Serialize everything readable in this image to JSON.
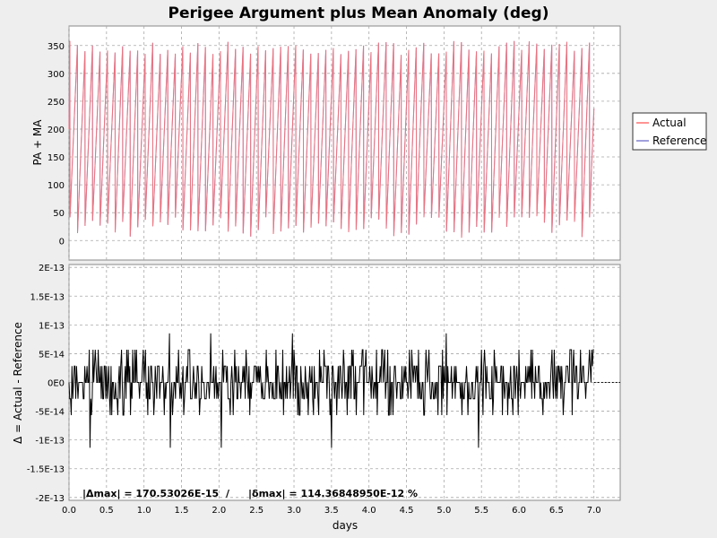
{
  "chart_data": [
    {
      "type": "line",
      "title": "Perigee Argument plus Mean Anomaly (deg)",
      "ylabel": "PA + MA",
      "xlim": [
        0,
        7.35
      ],
      "ylim": [
        -35,
        385
      ],
      "yticks": [
        0,
        50,
        100,
        150,
        200,
        250,
        300,
        350
      ],
      "grid": true,
      "legend": "right",
      "wrap_period_days": 0.1004,
      "first_peak_days": 0.012,
      "data_end_days": 7.0,
      "peak_value": 358,
      "end_value": 237,
      "series": [
        {
          "name": "Actual",
          "color": "#ff7070"
        },
        {
          "name": "Reference",
          "color": "#8080d0"
        }
      ]
    },
    {
      "type": "line",
      "xlabel": "days",
      "ylabel": "Δ = Actual - Reference",
      "xlim": [
        0,
        7.35
      ],
      "ylim": [
        -2.05e-13,
        2.05e-13
      ],
      "xticks": [
        "0.0",
        "0.5",
        "1.0",
        "1.5",
        "2.0",
        "2.5",
        "3.0",
        "3.5",
        "4.0",
        "4.5",
        "5.0",
        "5.5",
        "6.0",
        "6.5",
        "7.0"
      ],
      "yticks": [
        "-2E-13",
        "-1.5E-13",
        "-1E-13",
        "-5E-14",
        "0E0",
        "5E-14",
        "1E-13",
        "1.5E-13",
        "2E-13"
      ],
      "grid": true,
      "quantum": 2.842e-14,
      "series": [
        {
          "name": "Δ",
          "color": "#000000"
        }
      ],
      "annotation": {
        "delta_max": "|Δmax| = 170.53026E-15",
        "separator": "/",
        "rel_max": "|δmax| = 114.36848950E-12 %"
      }
    }
  ],
  "legend": {
    "items": [
      "Actual",
      "Reference"
    ]
  }
}
